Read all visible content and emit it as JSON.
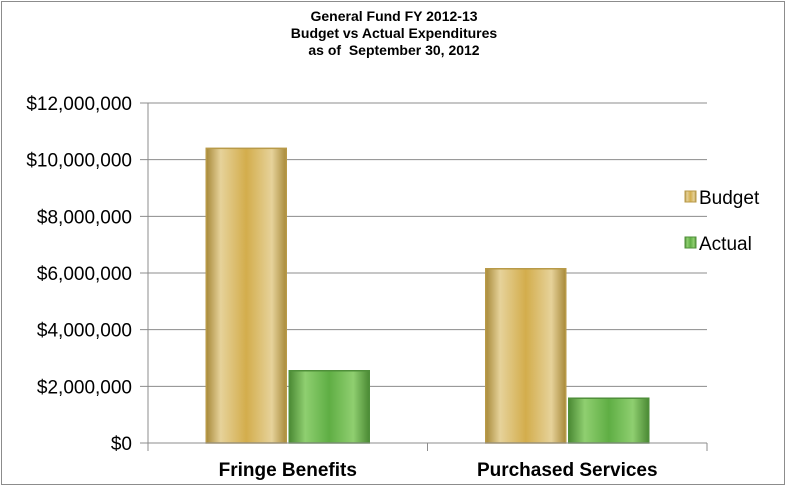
{
  "chart_data": {
    "type": "bar",
    "title_lines": [
      "General Fund FY 2012-13",
      "Budget vs Actual Expenditures",
      "as of  September 30, 2012"
    ],
    "categories": [
      "Fringe Benefits",
      "Purchased Services"
    ],
    "series": [
      {
        "name": "Budget",
        "values": [
          10400000,
          6150000
        ],
        "color": "#d9b95a"
      },
      {
        "name": "Actual",
        "values": [
          2550000,
          1580000
        ],
        "color": "#6fbd50"
      }
    ],
    "y_ticks": [
      "$0",
      "$2,000,000",
      "$4,000,000",
      "$6,000,000",
      "$8,000,000",
      "$10,000,000",
      "$12,000,000"
    ],
    "ylim": [
      0,
      12000000
    ],
    "grid": true,
    "legend_position": "right"
  }
}
